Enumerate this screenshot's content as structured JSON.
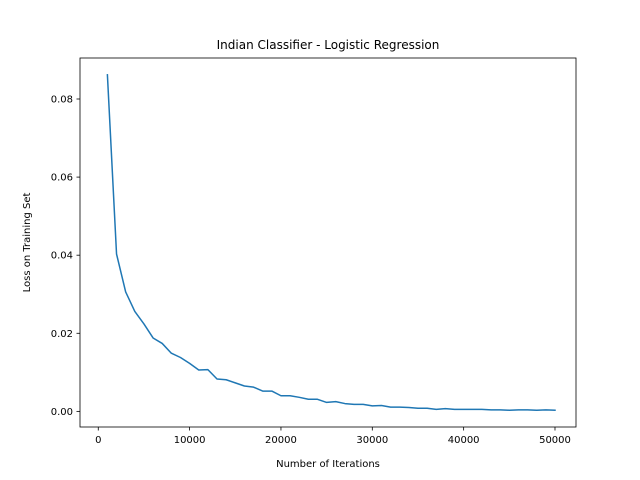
{
  "chart_data": {
    "type": "line",
    "title": "Indian Classifier - Logistic Regression",
    "xlabel": "Number of Iterations",
    "ylabel": "Loss on Training Set",
    "xlim": [
      -2000,
      52300
    ],
    "ylim": [
      -0.004,
      0.0905
    ],
    "grid": false,
    "legend": "none",
    "x_ticks": [
      {
        "value": 0,
        "label": "0"
      },
      {
        "value": 10000,
        "label": "10000"
      },
      {
        "value": 20000,
        "label": "20000"
      },
      {
        "value": 30000,
        "label": "30000"
      },
      {
        "value": 40000,
        "label": "40000"
      },
      {
        "value": 50000,
        "label": "50000"
      }
    ],
    "y_ticks": [
      {
        "value": 0,
        "label": "0.00"
      },
      {
        "value": 0.02,
        "label": "0.02"
      },
      {
        "value": 0.04,
        "label": "0.04"
      },
      {
        "value": 0.06,
        "label": "0.06"
      },
      {
        "value": 0.08,
        "label": "0.08"
      }
    ],
    "line_color": "#1f77b4",
    "series": [
      {
        "x": [
          1000,
          2000,
          3000,
          4000,
          5000,
          6000,
          7000,
          8000,
          9000,
          10000,
          11000,
          12000,
          13000,
          14000,
          15000,
          16000,
          17000,
          18000,
          19000,
          20000,
          21000,
          22000,
          23000,
          24000,
          25000,
          26000,
          27000,
          28000,
          29000,
          30000,
          31000,
          32000,
          33000,
          34000,
          35000,
          36000,
          37000,
          38000,
          39000,
          40000,
          41000,
          42000,
          43000,
          44000,
          45000,
          46000,
          47000,
          48000,
          49000,
          50000
        ],
        "y": [
          0.0862,
          0.0403,
          0.0306,
          0.0256,
          0.0224,
          0.0188,
          0.0174,
          0.0149,
          0.0138,
          0.0123,
          0.0106,
          0.0107,
          0.0083,
          0.0081,
          0.0073,
          0.0065,
          0.0062,
          0.0052,
          0.0052,
          0.004,
          0.004,
          0.0036,
          0.0031,
          0.0031,
          0.0023,
          0.0025,
          0.002,
          0.0018,
          0.0018,
          0.0014,
          0.0015,
          0.0011,
          0.0011,
          0.001,
          0.0008,
          0.0008,
          0.0005,
          0.0007,
          0.0005,
          0.0005,
          0.0005,
          0.0005,
          0.0004,
          0.0004,
          0.0003,
          0.0004,
          0.0004,
          0.0003,
          0.0004,
          0.0003
        ]
      }
    ]
  }
}
